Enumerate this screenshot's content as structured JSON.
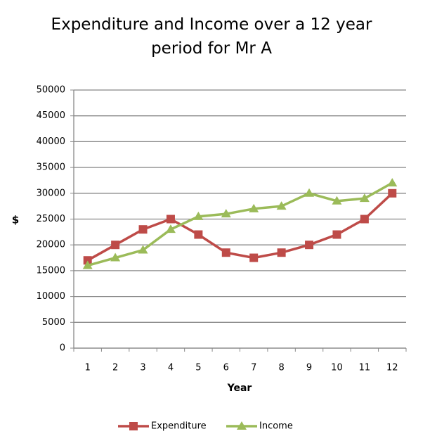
{
  "chart_data": {
    "type": "line",
    "title": "Expenditure and Income over a 12 year period for Mr A",
    "x_label": "Year",
    "y_label": "$",
    "categories": [
      "1",
      "2",
      "3",
      "4",
      "5",
      "6",
      "7",
      "8",
      "9",
      "10",
      "11",
      "12"
    ],
    "series": [
      {
        "name": "Expenditure",
        "color": "#be4b48",
        "marker": "square",
        "values": [
          17000,
          20000,
          23000,
          25000,
          22000,
          18500,
          17500,
          18500,
          20000,
          22000,
          25000,
          30000
        ]
      },
      {
        "name": "Income",
        "color": "#9bbb59",
        "marker": "triangle",
        "values": [
          16000,
          17500,
          19000,
          23000,
          25500,
          26000,
          27000,
          27500,
          30000,
          28500,
          29000,
          32000
        ]
      }
    ],
    "ylim": [
      0,
      50000
    ],
    "yticks": [
      0,
      5000,
      10000,
      15000,
      20000,
      25000,
      30000,
      35000,
      40000,
      45000,
      50000
    ],
    "grid": true,
    "legend": "bottom"
  }
}
